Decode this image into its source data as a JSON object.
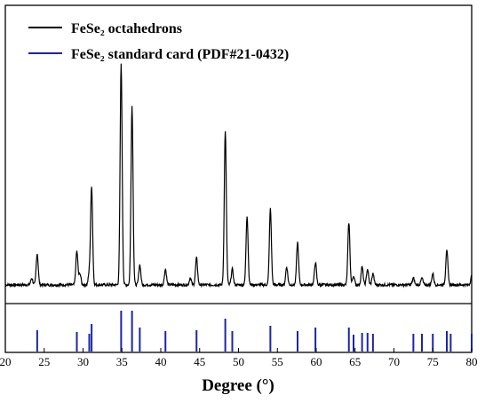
{
  "chart_data": {
    "type": "line",
    "xlabel": "Degree (°)",
    "ylabel": "",
    "xlim": [
      20,
      80
    ],
    "xticks": [
      20,
      25,
      30,
      35,
      40,
      45,
      50,
      55,
      60,
      65,
      70,
      75,
      80
    ],
    "legend": {
      "placement": "top-left"
    },
    "series": [
      {
        "name": "FeSe₂ octahedrons",
        "kind": "line",
        "color": "#000000",
        "baseline": 0.06,
        "peaks": [
          {
            "x": 23.4,
            "y": 0.03
          },
          {
            "x": 24.1,
            "y": 0.14
          },
          {
            "x": 29.2,
            "y": 0.15
          },
          {
            "x": 29.6,
            "y": 0.05
          },
          {
            "x": 30.8,
            "y": 0.05
          },
          {
            "x": 31.1,
            "y": 0.44
          },
          {
            "x": 34.9,
            "y": 0.99
          },
          {
            "x": 36.3,
            "y": 0.8
          },
          {
            "x": 37.3,
            "y": 0.09
          },
          {
            "x": 40.6,
            "y": 0.07
          },
          {
            "x": 43.8,
            "y": 0.03
          },
          {
            "x": 44.6,
            "y": 0.12
          },
          {
            "x": 48.3,
            "y": 0.69
          },
          {
            "x": 49.2,
            "y": 0.07
          },
          {
            "x": 51.1,
            "y": 0.31
          },
          {
            "x": 54.1,
            "y": 0.34
          },
          {
            "x": 56.2,
            "y": 0.08
          },
          {
            "x": 57.6,
            "y": 0.19
          },
          {
            "x": 59.9,
            "y": 0.1
          },
          {
            "x": 64.2,
            "y": 0.28
          },
          {
            "x": 64.8,
            "y": 0.04
          },
          {
            "x": 65.9,
            "y": 0.08
          },
          {
            "x": 66.6,
            "y": 0.07
          },
          {
            "x": 67.3,
            "y": 0.05
          },
          {
            "x": 72.5,
            "y": 0.03
          },
          {
            "x": 73.6,
            "y": 0.03
          },
          {
            "x": 75.0,
            "y": 0.05
          },
          {
            "x": 76.8,
            "y": 0.16
          },
          {
            "x": 80.0,
            "y": 0.04
          }
        ]
      },
      {
        "name": "FeSe₂ standard card (PDF#21-0432)",
        "kind": "sticks",
        "color": "#1c24a8",
        "x": [
          24.1,
          29.2,
          30.8,
          31.1,
          34.9,
          36.3,
          37.3,
          40.6,
          44.6,
          48.3,
          49.2,
          54.1,
          57.6,
          59.9,
          64.2,
          64.8,
          65.9,
          66.6,
          67.3,
          72.5,
          73.6,
          75.0,
          76.8,
          77.3,
          80.0
        ],
        "y": [
          0.48,
          0.44,
          0.4,
          0.62,
          0.92,
          0.92,
          0.54,
          0.46,
          0.48,
          0.74,
          0.46,
          0.58,
          0.46,
          0.54,
          0.54,
          0.38,
          0.42,
          0.42,
          0.4,
          0.4,
          0.4,
          0.4,
          0.46,
          0.4,
          0.4
        ]
      }
    ]
  }
}
